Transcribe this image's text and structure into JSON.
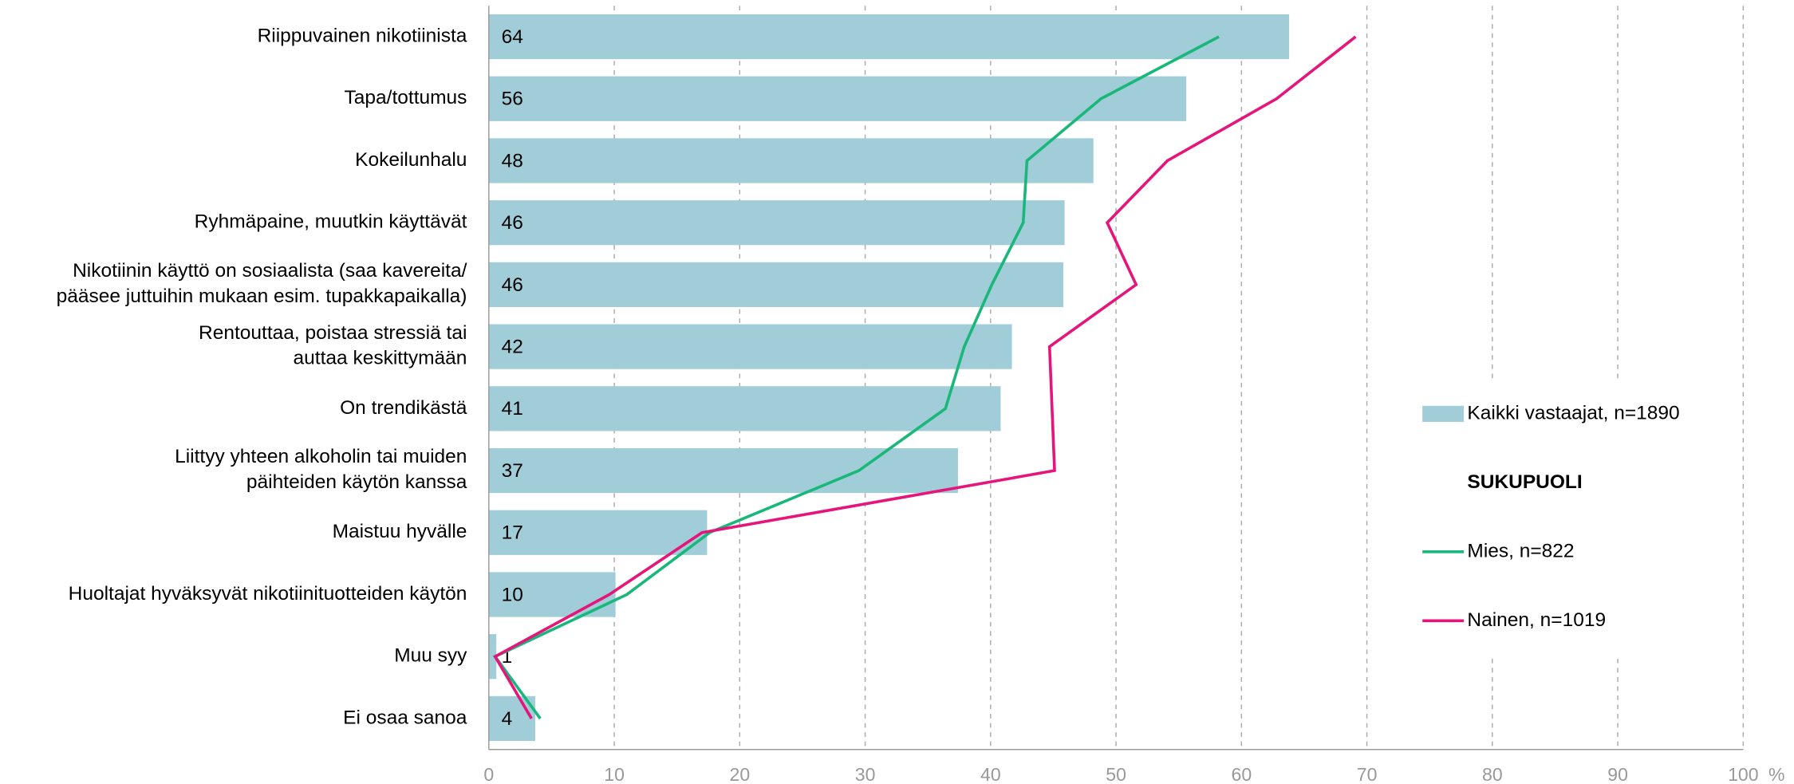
{
  "chart_data": {
    "type": "bar",
    "orientation": "horizontal",
    "categories": [
      "Riippuvainen nikotiinista",
      "Tapa/tottumus",
      "Kokeilunhalu",
      "Ryhmäpaine, muutkin käyttävät",
      "Nikotiinin käyttö on sosiaalista (saa kavereita/\npääsee juttuihin mukaan esim. tupakkapaikalla)",
      "Rentouttaa, poistaa stressiä tai\nauttaa keskittymään",
      "On trendikästä",
      "Liittyy yhteen alkoholin tai muiden\npäihteiden käytön kanssa",
      "Maistuu hyvälle",
      "Huoltajat hyväksyvät nikotiinituotteiden käytön",
      "Muu syy",
      "Ei osaa sanoa"
    ],
    "series": [
      {
        "name": "Kaikki vastaajat, n=1890",
        "type": "bar",
        "color": "#a0cdd8",
        "values": [
          63.8,
          55.6,
          48.2,
          45.9,
          45.8,
          41.7,
          40.8,
          37.4,
          17.4,
          10.1,
          0.6,
          3.7
        ],
        "value_labels": [
          "64",
          "56",
          "48",
          "46",
          "46",
          "42",
          "41",
          "37",
          "17",
          "10",
          "1",
          "4"
        ]
      },
      {
        "name": "Mies, n=822",
        "type": "line",
        "color": "#19b77a",
        "values": [
          58.2,
          48.8,
          42.9,
          42.6,
          40.1,
          37.9,
          36.4,
          29.5,
          17.6,
          11.0,
          0.5,
          4.1
        ]
      },
      {
        "name": "Nainen, n=1019",
        "type": "line",
        "color": "#e5157a",
        "values": [
          69.1,
          62.8,
          54.1,
          49.3,
          51.6,
          44.7,
          44.9,
          45.1,
          17.0,
          9.6,
          0.5,
          3.4
        ]
      }
    ],
    "legend_group_title": "SUKUPUOLI",
    "xlim": [
      0,
      100
    ],
    "xticks": [
      0,
      10,
      20,
      30,
      40,
      50,
      60,
      70,
      80,
      90,
      100
    ],
    "x_unit": "%",
    "grid": true,
    "legend": "right"
  }
}
